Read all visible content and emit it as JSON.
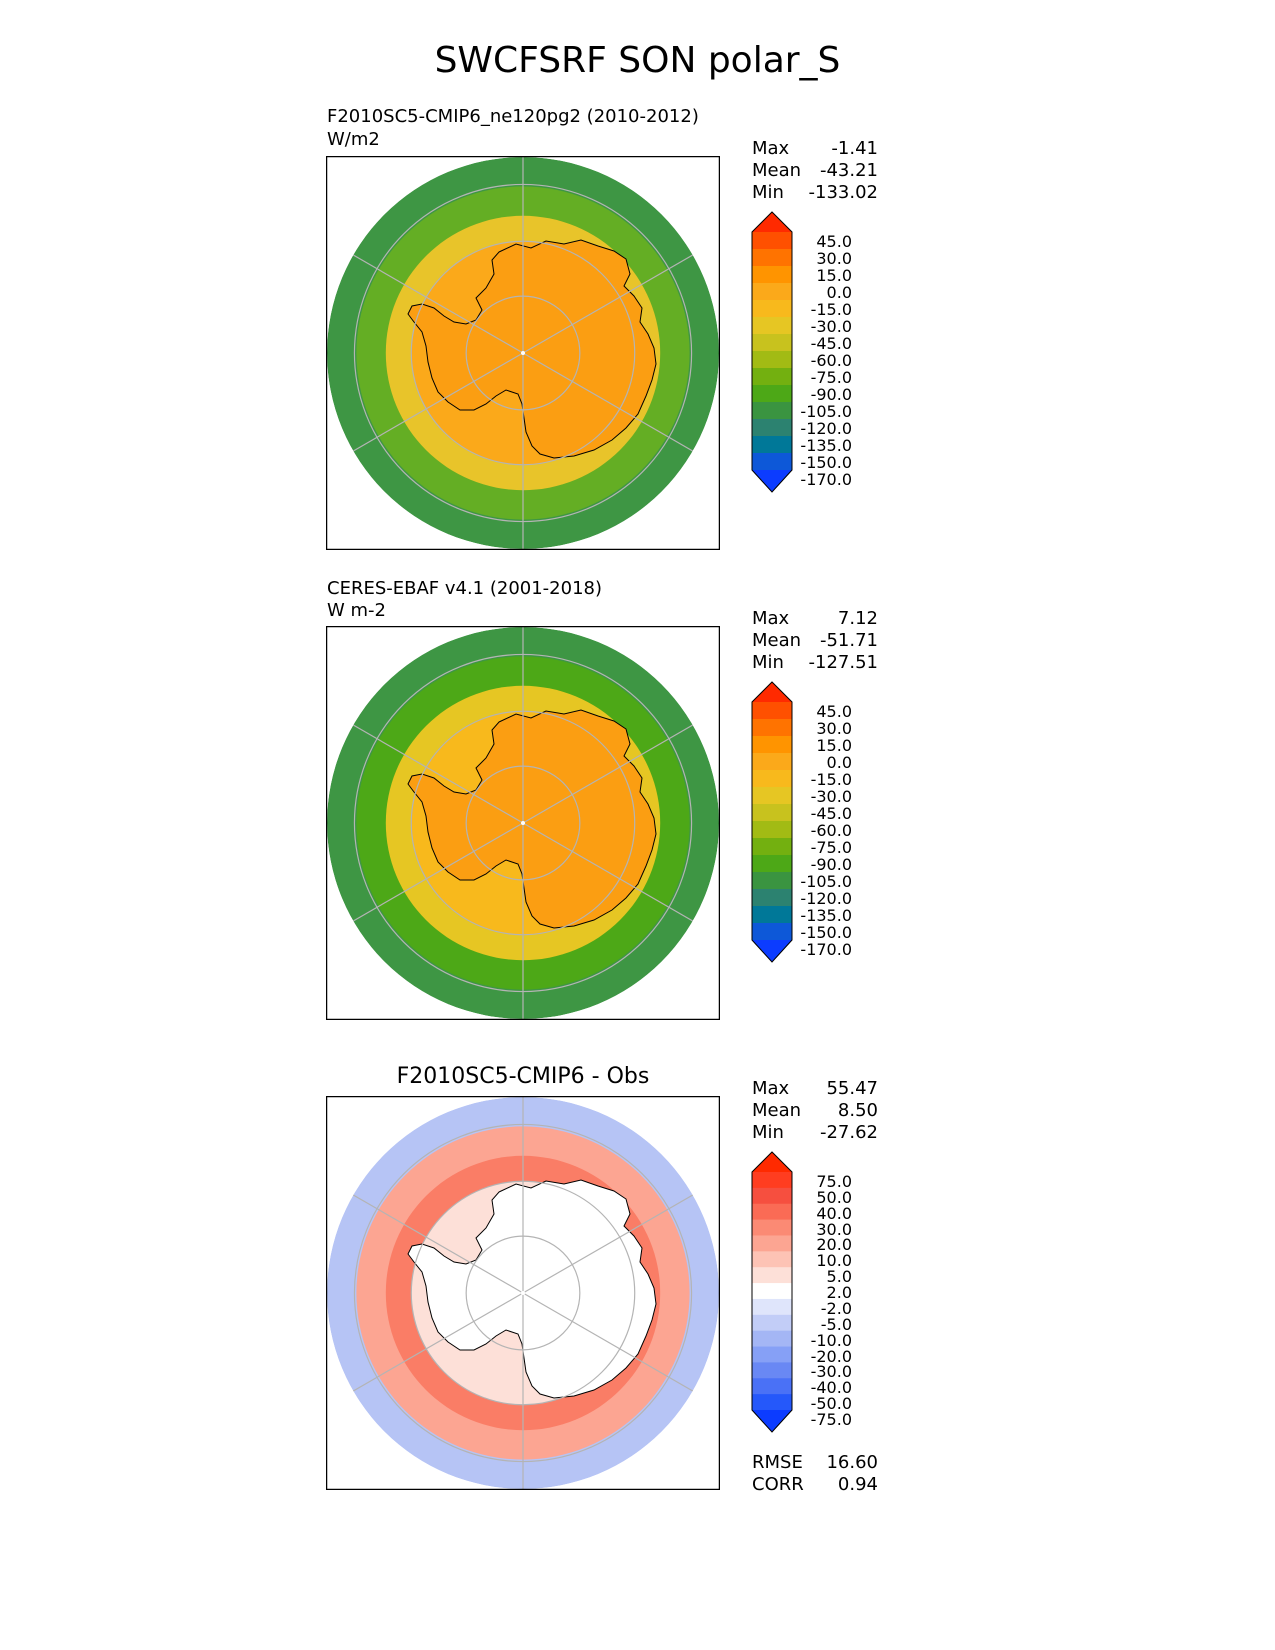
{
  "title": "SWCFSRF SON polar_S",
  "panels": [
    {
      "id": "model",
      "title_line1": "F2010SC5-CMIP6_ne120pg2 (2010-2012)",
      "title_line2": "W/m2",
      "stats": [
        {
          "label": "Max",
          "value": "-1.41"
        },
        {
          "label": "Mean",
          "value": "-43.21"
        },
        {
          "label": "Min",
          "value": "-133.02"
        }
      ]
    },
    {
      "id": "obs",
      "title_line1": "CERES-EBAF v4.1 (2001-2018)",
      "title_line2": "W m-2",
      "stats": [
        {
          "label": "Max",
          "value": "7.12"
        },
        {
          "label": "Mean",
          "value": "-51.71"
        },
        {
          "label": "Min",
          "value": "-127.51"
        }
      ]
    },
    {
      "id": "diff",
      "title_center": "F2010SC5-CMIP6 - Obs",
      "stats": [
        {
          "label": "Max",
          "value": "55.47"
        },
        {
          "label": "Mean",
          "value": "8.50"
        },
        {
          "label": "Min",
          "value": "-27.62"
        }
      ],
      "extra_stats": [
        {
          "label": "RMSE",
          "value": "16.60"
        },
        {
          "label": "CORR",
          "value": "0.94"
        }
      ]
    }
  ],
  "colorbar_main": {
    "labels": [
      "45.0",
      "30.0",
      "15.0",
      "0.0",
      "-15.0",
      "-30.0",
      "-45.0",
      "-60.0",
      "-75.0",
      "-90.0",
      "-105.0",
      "-120.0",
      "-135.0",
      "-150.0",
      "-170.0"
    ],
    "colors": [
      "#ff2a00",
      "#ff5000",
      "#ff7300",
      "#ff9400",
      "#fba91a",
      "#f8b91c",
      "#e6c623",
      "#c8c21e",
      "#a2bb14",
      "#73b010",
      "#4da817",
      "#3a9440",
      "#2c8270",
      "#007898",
      "#0d58d8",
      "#0c3cff"
    ]
  },
  "colorbar_diff": {
    "labels": [
      "75.0",
      "50.0",
      "40.0",
      "30.0",
      "20.0",
      "10.0",
      "5.0",
      "2.0",
      "-2.0",
      "-5.0",
      "-10.0",
      "-20.0",
      "-30.0",
      "-40.0",
      "-50.0",
      "-75.0"
    ],
    "colors": [
      "#ff2a00",
      "#ff3d20",
      "#f64f3f",
      "#fa6b55",
      "#fb8a74",
      "#fca592",
      "#fdc3b5",
      "#fde0d8",
      "#ffffff",
      "#dfe5fb",
      "#c2cdf7",
      "#a4b6f5",
      "#86a0f6",
      "#6988f4",
      "#4a71f6",
      "#2558fa",
      "#0c3cff"
    ]
  },
  "map_colors": {
    "model": {
      "outer": "#3e9644",
      "mid": "#64ae24",
      "ring": "#e8c42a",
      "inner": "#fba91a",
      "land": "#fb9e12"
    },
    "obs": {
      "outer": "#3e9644",
      "mid": "#4da817",
      "ring": "#e6c623",
      "inner": "#f8b91c",
      "land": "#fb9e12"
    },
    "diff": {
      "outer": "#b6c4f5",
      "mid": "#fca592",
      "ring": "#fa7d66",
      "inner": "#fde0d8",
      "land": "#ffffff"
    }
  }
}
